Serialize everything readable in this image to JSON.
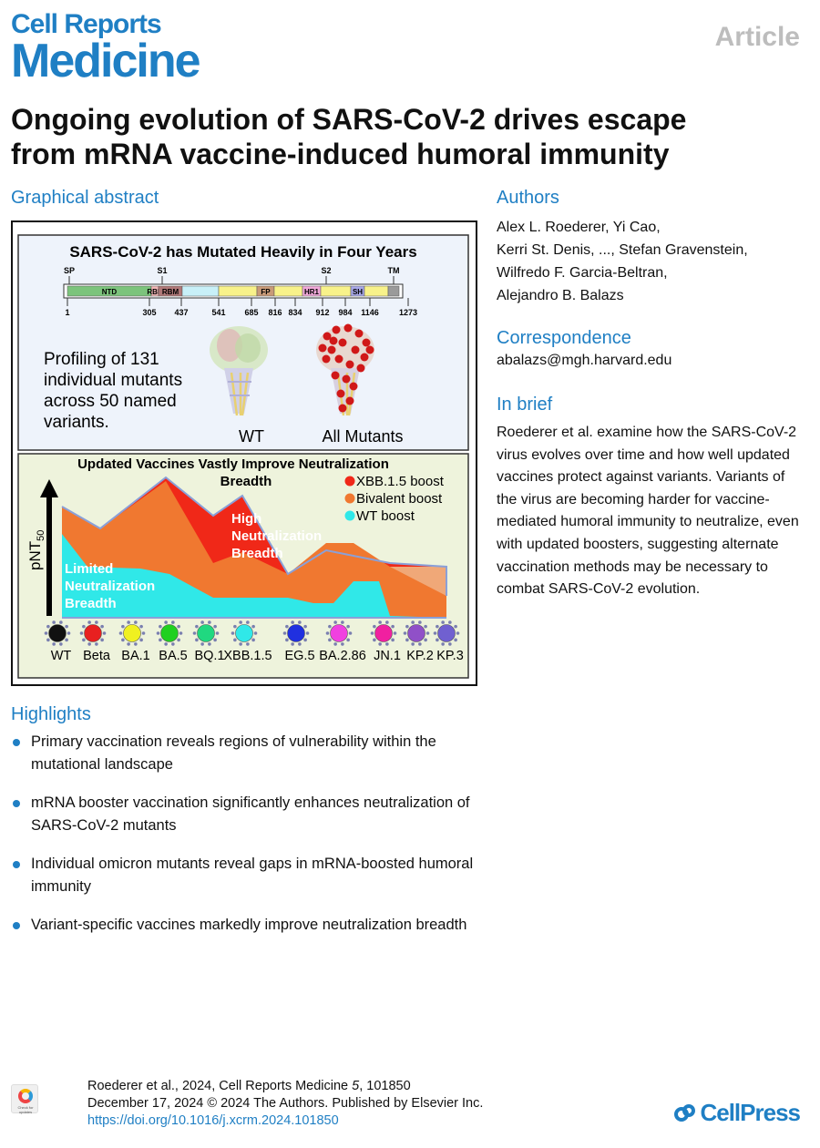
{
  "journal": {
    "line1": "Cell Reports",
    "line2": "Medicine"
  },
  "article_type": "Article",
  "title_line1": "Ongoing evolution of SARS-CoV-2 drives escape",
  "title_line2": "from mRNA vaccine-induced humoral immunity",
  "sections": {
    "graphical_abstract": "Graphical abstract",
    "authors": "Authors",
    "correspondence": "Correspondence",
    "in_brief": "In brief",
    "highlights": "Highlights"
  },
  "authors_lines": [
    "Alex L. Roederer, Yi Cao,",
    "Kerri St. Denis, ..., Stefan Gravenstein,",
    "Wilfredo F. Garcia-Beltran,",
    "Alejandro B. Balazs"
  ],
  "correspondence_email": "abalazs@mgh.harvard.edu",
  "in_brief_text": "Roederer et al. examine how the SARS-CoV-2 virus evolves over time and how well updated vaccines protect against variants. Variants of the virus are becoming harder for vaccine-mediated humoral immunity to neutralize, even with updated boosters, suggesting alternate vaccination methods may be necessary to combat SARS-CoV-2 evolution.",
  "highlights": [
    "Primary vaccination reveals regions of vulnerability within the mutational landscape",
    "mRNA booster vaccination significantly enhances neutralization of SARS-CoV-2 mutants",
    "Individual omicron mutants reveal gaps in mRNA-boosted humoral immunity",
    "Variant-specific vaccines markedly improve neutralization breadth"
  ],
  "footer": {
    "citation_prefix": "Roederer et al., 2024, Cell Reports Medicine ",
    "citation_volume": "5",
    "citation_suffix": ", 101850",
    "date_line": "December 17, 2024 © 2024 The Authors. Published by Elsevier Inc.",
    "doi": "https://doi.org/10.1016/j.xcrm.2024.101850",
    "publisher": "CellPress",
    "check_badge": "Check for updates"
  },
  "graphical_abstract": {
    "top_panel": {
      "heading": "SARS-CoV-2 has Mutated Heavily in Four Years",
      "region_labels": [
        "SP",
        "S1",
        "S2",
        "TM"
      ],
      "domains": [
        {
          "label": "NTD",
          "color": "#7cc47c"
        },
        {
          "label": "RBD",
          "color": "#f2b6b6"
        },
        {
          "label": "RBM",
          "color": "#b07878"
        },
        {
          "label": "",
          "color": "#c8f0f8"
        },
        {
          "label": "",
          "color": "#f8f28a"
        },
        {
          "label": "FP",
          "color": "#c89a78"
        },
        {
          "label": "",
          "color": "#f8f28a"
        },
        {
          "label": "HR1",
          "color": "#f0a8d8"
        },
        {
          "label": "",
          "color": "#f8f28a"
        },
        {
          "label": "SH",
          "color": "#a8a8e8"
        },
        {
          "label": "",
          "color": "#f8f28a"
        },
        {
          "label": "",
          "color": "#9a9a9a"
        }
      ],
      "positions": [
        "1",
        "305",
        "437",
        "541",
        "685",
        "816",
        "834",
        "912",
        "984",
        "1146",
        "1273"
      ],
      "profiling_lines": [
        "Profiling of 131",
        "individual mutants",
        "across 50 named",
        "variants."
      ],
      "structure_labels": [
        "WT",
        "All Mutants"
      ]
    },
    "bottom_panel": {
      "heading_line1": "Updated Vaccines Vastly Improve Neutralization",
      "heading_line2": "Breadth",
      "ylabel": "pNT",
      "ylabel_sub": "50",
      "legend": [
        {
          "label": "XBB.1.5 boost",
          "color": "#f02818"
        },
        {
          "label": "Bivalent boost",
          "color": "#f07830"
        },
        {
          "label": "WT boost",
          "color": "#30e8e8"
        }
      ],
      "annotation_high": [
        "High",
        "Neutralization",
        "Breadth"
      ],
      "annotation_limited": [
        "Limited",
        "Neutralization",
        "Breadth"
      ],
      "variants": [
        {
          "label": "WT",
          "color": "#111111"
        },
        {
          "label": "Beta",
          "color": "#e82020"
        },
        {
          "label": "BA.1",
          "color": "#f0f020"
        },
        {
          "label": "BA.5",
          "color": "#20d020"
        },
        {
          "label": "BQ.1",
          "color": "#20d880"
        },
        {
          "label": "XBB.1.5",
          "color": "#30e8e8"
        },
        {
          "label": "EG.5",
          "color": "#2030e0"
        },
        {
          "label": "BA.2.86",
          "color": "#f040e0"
        },
        {
          "label": "JN.1",
          "color": "#f020a0"
        },
        {
          "label": "KP.2",
          "color": "#9050c8"
        },
        {
          "label": "KP.3",
          "color": "#7060d0"
        }
      ]
    }
  }
}
